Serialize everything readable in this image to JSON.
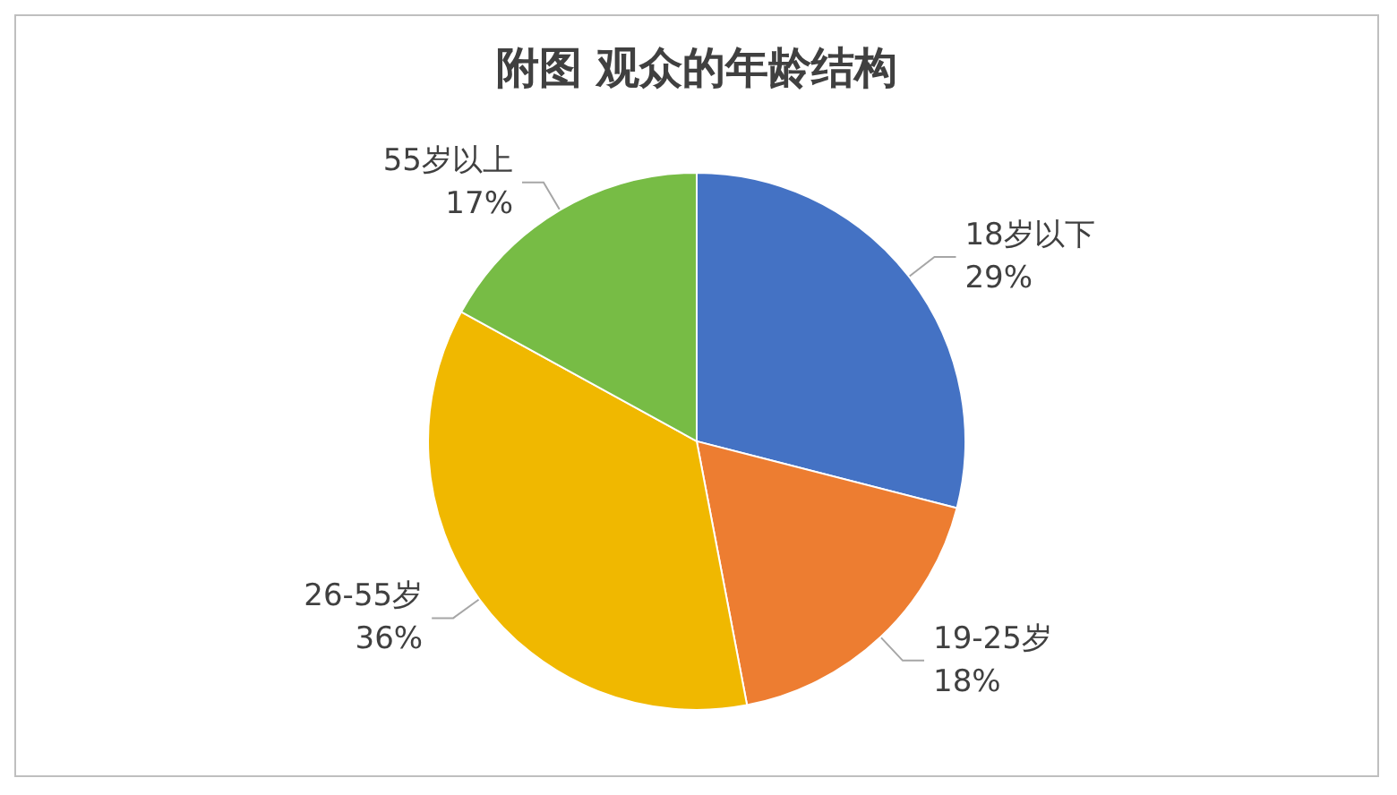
{
  "chart_data": {
    "type": "pie",
    "title": "附图 观众的年龄结构",
    "categories": [
      "18岁以下",
      "19-25岁",
      "26-55岁",
      "55岁以上"
    ],
    "values": [
      29,
      18,
      36,
      17
    ],
    "colors": [
      "#4472c4",
      "#ed7d31",
      "#f0b800",
      "#77bc45"
    ],
    "value_labels": [
      "29%",
      "18%",
      "36%",
      "17%"
    ],
    "legend": false
  }
}
